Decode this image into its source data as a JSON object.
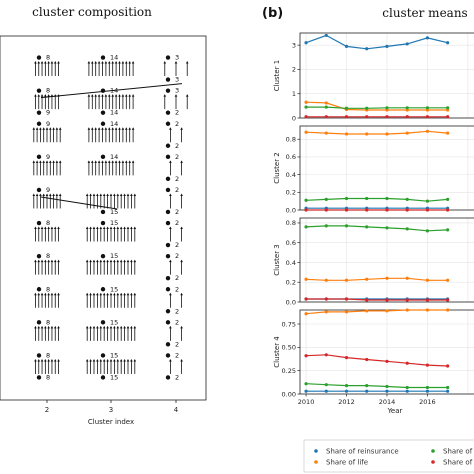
{
  "panel_a": {
    "title": "cluster composition",
    "xlabel": "Cluster index",
    "x_ticks": [
      "2",
      "3",
      "4"
    ]
  },
  "panel_b": {
    "letter": "(b)",
    "title": "cluster means",
    "xlabel": "Year"
  },
  "legend": {
    "entries": [
      {
        "label": "Share of reinsurance",
        "color": "#1f77b4"
      },
      {
        "label": "Share of no",
        "color": "#2ca02c"
      },
      {
        "label": "Share of life",
        "color": "#ff7f0e"
      },
      {
        "label": "Share of m",
        "color": "#d62728"
      }
    ]
  },
  "chart_data": [
    {
      "type": "scatter",
      "name": "cluster composition",
      "x_categories": [
        "2",
        "3",
        "4"
      ],
      "rows": [
        {
          "counts": [
            8,
            14,
            3
          ]
        },
        {
          "counts": [
            8,
            14,
            3
          ]
        },
        {
          "counts": [
            9,
            14,
            2
          ]
        },
        {
          "counts": [
            9,
            14,
            2
          ]
        },
        {
          "counts": [
            9,
            15,
            2
          ]
        },
        {
          "counts": [
            8,
            15,
            2
          ]
        },
        {
          "counts": [
            8,
            15,
            2
          ]
        },
        {
          "counts": [
            8,
            15,
            2
          ]
        },
        {
          "counts": [
            8,
            15,
            2
          ]
        },
        {
          "counts": [
            8,
            15,
            2
          ]
        }
      ],
      "labels_top": [
        [
          "8",
          "14",
          "3"
        ],
        [
          "8",
          "14",
          "3"
        ],
        [
          "9",
          "14",
          "2"
        ],
        [
          "9",
          "14",
          "2"
        ],
        [
          "9",
          "",
          "2"
        ],
        [
          "8",
          "15",
          "2"
        ],
        [
          "8",
          "15",
          "2"
        ],
        [
          "8",
          "15",
          "2"
        ],
        [
          "8",
          "15",
          "2"
        ],
        [
          "8",
          "15",
          "2"
        ]
      ],
      "labels_bottom": [
        [
          "",
          "",
          "3"
        ],
        [
          "9",
          "14",
          "2"
        ],
        [
          "",
          "",
          "2"
        ],
        [
          "",
          "",
          "2"
        ],
        [
          "",
          "15",
          "2"
        ],
        [
          "",
          "",
          "2"
        ],
        [
          "",
          "",
          "2"
        ],
        [
          "",
          "",
          "2"
        ],
        [
          "",
          "",
          "2"
        ],
        [
          "8",
          "15",
          "2"
        ]
      ],
      "transitions": [
        {
          "from_row": 1,
          "from_col": 0,
          "to_row": 1,
          "to_col": 2
        },
        {
          "from_row": 4,
          "from_col": 0,
          "to_row": 4,
          "to_col": 1
        }
      ]
    },
    {
      "type": "line",
      "name": "Cluster 1",
      "ylabel": "Cluster 1",
      "x": [
        2010,
        2011,
        2012,
        2013,
        2014,
        2015,
        2016,
        2017
      ],
      "ylim": [
        0,
        3.5
      ],
      "y_ticks": [
        "0",
        "1",
        "2",
        "3"
      ],
      "series": [
        {
          "color": "#1f77b4",
          "values": [
            3.1,
            3.4,
            2.95,
            2.85,
            2.95,
            3.05,
            3.3,
            3.1
          ]
        },
        {
          "color": "#ff7f0e",
          "values": [
            0.65,
            0.62,
            0.35,
            0.33,
            0.33,
            0.33,
            0.33,
            0.33
          ]
        },
        {
          "color": "#2ca02c",
          "values": [
            0.45,
            0.45,
            0.4,
            0.4,
            0.42,
            0.42,
            0.42,
            0.42
          ]
        },
        {
          "color": "#d62728",
          "values": [
            0.05,
            0.05,
            0.05,
            0.05,
            0.05,
            0.05,
            0.05,
            0.05
          ]
        }
      ]
    },
    {
      "type": "line",
      "name": "Cluster 2",
      "ylabel": "Cluster 2",
      "x": [
        2010,
        2011,
        2012,
        2013,
        2014,
        2015,
        2016,
        2017
      ],
      "ylim": [
        0,
        0.95
      ],
      "y_ticks": [
        "0.0",
        "0.2",
        "0.4",
        "0.6",
        "0.8"
      ],
      "series": [
        {
          "color": "#ff7f0e",
          "values": [
            0.88,
            0.87,
            0.86,
            0.86,
            0.86,
            0.87,
            0.89,
            0.87
          ]
        },
        {
          "color": "#2ca02c",
          "values": [
            0.11,
            0.12,
            0.13,
            0.13,
            0.13,
            0.12,
            0.1,
            0.12
          ]
        },
        {
          "color": "#1f77b4",
          "values": [
            0.02,
            0.02,
            0.02,
            0.02,
            0.02,
            0.02,
            0.02,
            0.02
          ]
        },
        {
          "color": "#d62728",
          "values": [
            0.0,
            0.0,
            0.0,
            0.0,
            0.0,
            0.0,
            0.0,
            0.0
          ]
        }
      ]
    },
    {
      "type": "line",
      "name": "Cluster 3",
      "ylabel": "Cluster 3",
      "x": [
        2010,
        2011,
        2012,
        2013,
        2014,
        2015,
        2016,
        2017
      ],
      "ylim": [
        0,
        0.85
      ],
      "y_ticks": [
        "0.0",
        "0.2",
        "0.4",
        "0.6",
        "0.8"
      ],
      "series": [
        {
          "color": "#2ca02c",
          "values": [
            0.76,
            0.77,
            0.77,
            0.76,
            0.75,
            0.74,
            0.72,
            0.73
          ]
        },
        {
          "color": "#ff7f0e",
          "values": [
            0.23,
            0.22,
            0.22,
            0.23,
            0.24,
            0.24,
            0.22,
            0.22
          ]
        },
        {
          "color": "#1f77b4",
          "values": [
            0.03,
            0.03,
            0.03,
            0.03,
            0.03,
            0.03,
            0.03,
            0.03
          ]
        },
        {
          "color": "#d62728",
          "values": [
            0.03,
            0.03,
            0.03,
            0.02,
            0.02,
            0.02,
            0.02,
            0.02
          ]
        }
      ]
    },
    {
      "type": "line",
      "name": "Cluster 4",
      "ylabel": "Cluster 4",
      "x": [
        2010,
        2011,
        2012,
        2013,
        2014,
        2015,
        2016,
        2017
      ],
      "ylim": [
        0,
        0.9
      ],
      "y_ticks": [
        "0.00",
        "0.25",
        "0.50",
        "0.75"
      ],
      "x_ticks": [
        "2010",
        "2012",
        "2014",
        "2016"
      ],
      "series": [
        {
          "color": "#ff7f0e",
          "values": [
            0.86,
            0.88,
            0.88,
            0.89,
            0.89,
            0.9,
            0.9,
            0.9
          ]
        },
        {
          "color": "#d62728",
          "values": [
            0.41,
            0.42,
            0.39,
            0.37,
            0.35,
            0.33,
            0.31,
            0.3
          ]
        },
        {
          "color": "#2ca02c",
          "values": [
            0.11,
            0.1,
            0.09,
            0.09,
            0.08,
            0.07,
            0.07,
            0.07
          ]
        },
        {
          "color": "#1f77b4",
          "values": [
            0.03,
            0.03,
            0.03,
            0.03,
            0.03,
            0.03,
            0.03,
            0.03
          ]
        }
      ]
    }
  ]
}
